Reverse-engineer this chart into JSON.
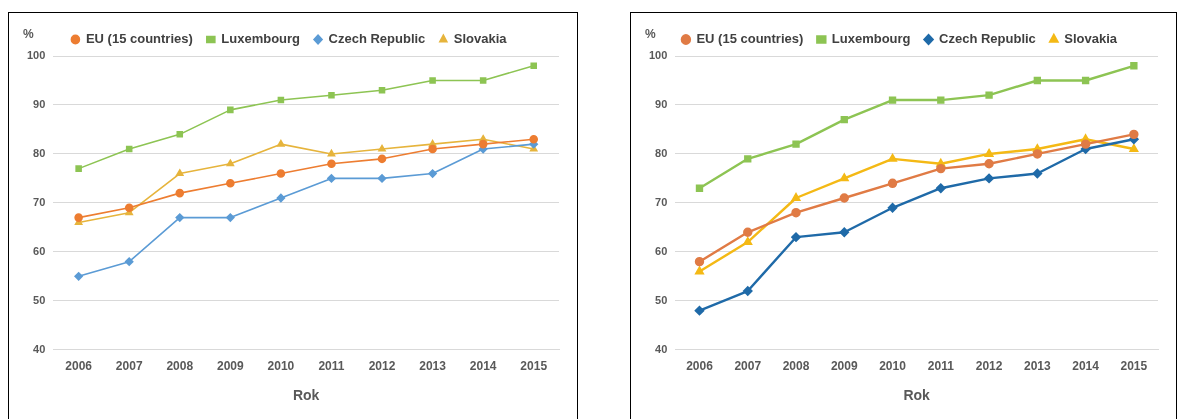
{
  "chart_data": [
    {
      "type": "line",
      "categories": [
        "2006",
        "2007",
        "2008",
        "2009",
        "2010",
        "2011",
        "2012",
        "2013",
        "2014",
        "2015"
      ],
      "xlabel": "Rok",
      "ylabel": "%",
      "ylim": [
        40,
        100
      ],
      "yticks": [
        40,
        50,
        60,
        70,
        80,
        90,
        100
      ],
      "grid": "y",
      "legend": "top",
      "series": [
        {
          "name": "EU (15 countries)",
          "color": "#ed7d31",
          "marker": "circle",
          "values": [
            67,
            69,
            72,
            74,
            76,
            78,
            79,
            81,
            82,
            83
          ]
        },
        {
          "name": "Luxembourg",
          "color": "#8dc453",
          "marker": "square",
          "values": [
            77,
            81,
            84,
            89,
            91,
            92,
            93,
            95,
            95,
            98
          ]
        },
        {
          "name": "Czech Republic",
          "color": "#5b9bd5",
          "marker": "diamond",
          "values": [
            55,
            58,
            67,
            67,
            71,
            75,
            75,
            76,
            81,
            82
          ]
        },
        {
          "name": "Slovakia",
          "color": "#e6b43c",
          "marker": "triangle",
          "values": [
            66,
            68,
            76,
            78,
            82,
            80,
            81,
            82,
            83,
            81
          ]
        }
      ]
    },
    {
      "type": "line",
      "categories": [
        "2006",
        "2007",
        "2008",
        "2009",
        "2010",
        "2011",
        "2012",
        "2013",
        "2014",
        "2015"
      ],
      "xlabel": "Rok",
      "ylabel": "%",
      "ylim": [
        40,
        100
      ],
      "yticks": [
        40,
        50,
        60,
        70,
        80,
        90,
        100
      ],
      "grid": "y",
      "legend": "top",
      "series": [
        {
          "name": "EU (15 countries)",
          "color": "#e07b45",
          "marker": "circle",
          "values": [
            58,
            64,
            68,
            71,
            74,
            77,
            78,
            80,
            82,
            84
          ]
        },
        {
          "name": "Luxembourg",
          "color": "#8dc453",
          "marker": "square",
          "values": [
            73,
            79,
            82,
            87,
            91,
            91,
            92,
            95,
            95,
            98
          ]
        },
        {
          "name": "Czech Republic",
          "color": "#1f6aa8",
          "marker": "diamond",
          "values": [
            48,
            52,
            63,
            64,
            69,
            73,
            75,
            76,
            81,
            83
          ]
        },
        {
          "name": "Slovakia",
          "color": "#f4b915",
          "marker": "triangle",
          "values": [
            56,
            62,
            71,
            75,
            79,
            78,
            80,
            81,
            83,
            81
          ]
        }
      ]
    }
  ]
}
